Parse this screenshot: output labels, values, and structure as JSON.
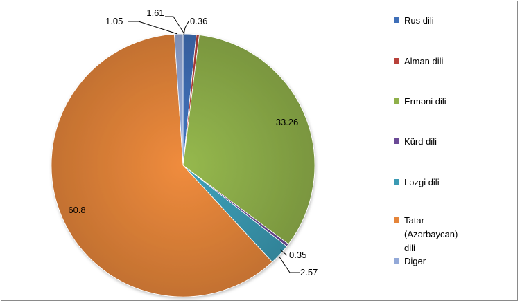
{
  "chart_data": {
    "type": "pie",
    "categories": [
      "Rus dili",
      "Alman dili",
      "Erməni dili",
      "Kürd dili",
      "Ləzgi dili",
      "Tatar\n(Azərbaycan)\ndili",
      "Digər"
    ],
    "values": [
      1.61,
      0.36,
      33.26,
      0.35,
      2.57,
      60.8,
      1.05
    ],
    "data_labels": [
      "1.61",
      "0.36",
      "33.26",
      "0.35",
      "2.57",
      "60.8",
      "1.05"
    ],
    "colors": [
      "#3f6fb8",
      "#b8413a",
      "#8fb04a",
      "#6b4a96",
      "#3b9ab3",
      "#e5853a",
      "#93a9d8"
    ],
    "title": "",
    "legend_position": "right"
  }
}
